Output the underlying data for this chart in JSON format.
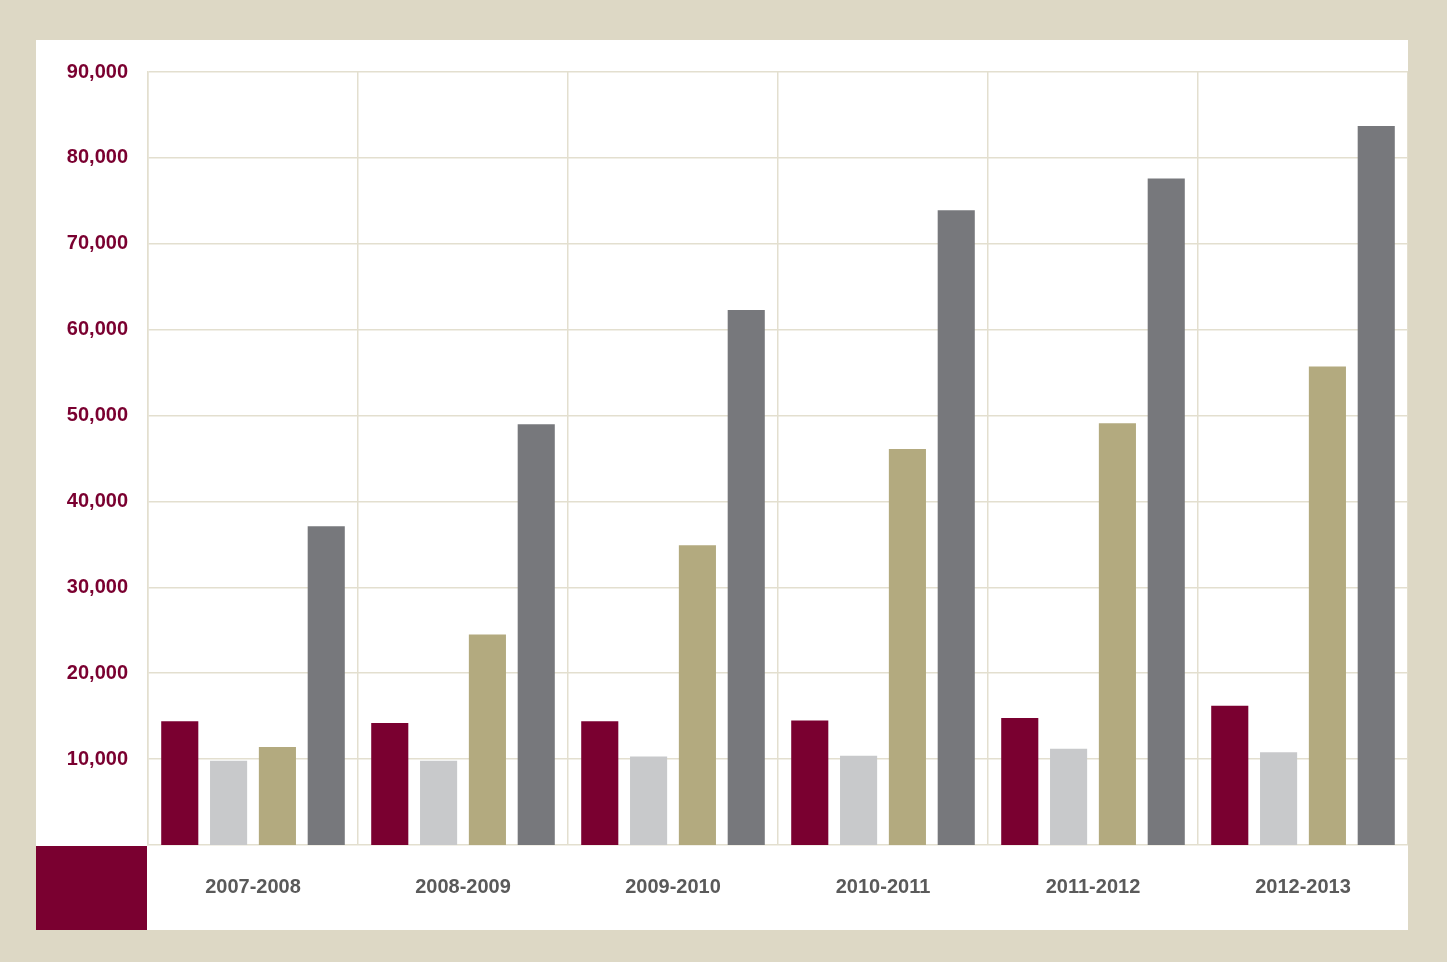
{
  "chart_data": {
    "type": "bar",
    "categories": [
      "2007-2008",
      "2008-2009",
      "2009-2010",
      "2010-2011",
      "2011-2012",
      "2012-2013"
    ],
    "series": [
      {
        "color": "#7a0030",
        "values": [
          14400,
          14200,
          14400,
          14500,
          14800,
          16200
        ]
      },
      {
        "color": "#c8c9cb",
        "values": [
          9800,
          9800,
          10300,
          10400,
          11200,
          10800
        ]
      },
      {
        "color": "#b3aa7f",
        "values": [
          11400,
          24500,
          34900,
          46100,
          49100,
          55700
        ]
      },
      {
        "color": "#77787c",
        "values": [
          37100,
          49000,
          62300,
          73900,
          77600,
          83700
        ]
      }
    ],
    "ylim": [
      0,
      90000
    ],
    "yticks": [
      {
        "value": 10000,
        "label": "10,000"
      },
      {
        "value": 20000,
        "label": "20,000"
      },
      {
        "value": 30000,
        "label": "30,000"
      },
      {
        "value": 40000,
        "label": "40,000"
      },
      {
        "value": 50000,
        "label": "50,000"
      },
      {
        "value": 60000,
        "label": "60,000"
      },
      {
        "value": 70000,
        "label": "70,000"
      },
      {
        "value": 80000,
        "label": "80,000"
      },
      {
        "value": 90000,
        "label": "90,000"
      }
    ],
    "grid": true,
    "legend": false
  }
}
